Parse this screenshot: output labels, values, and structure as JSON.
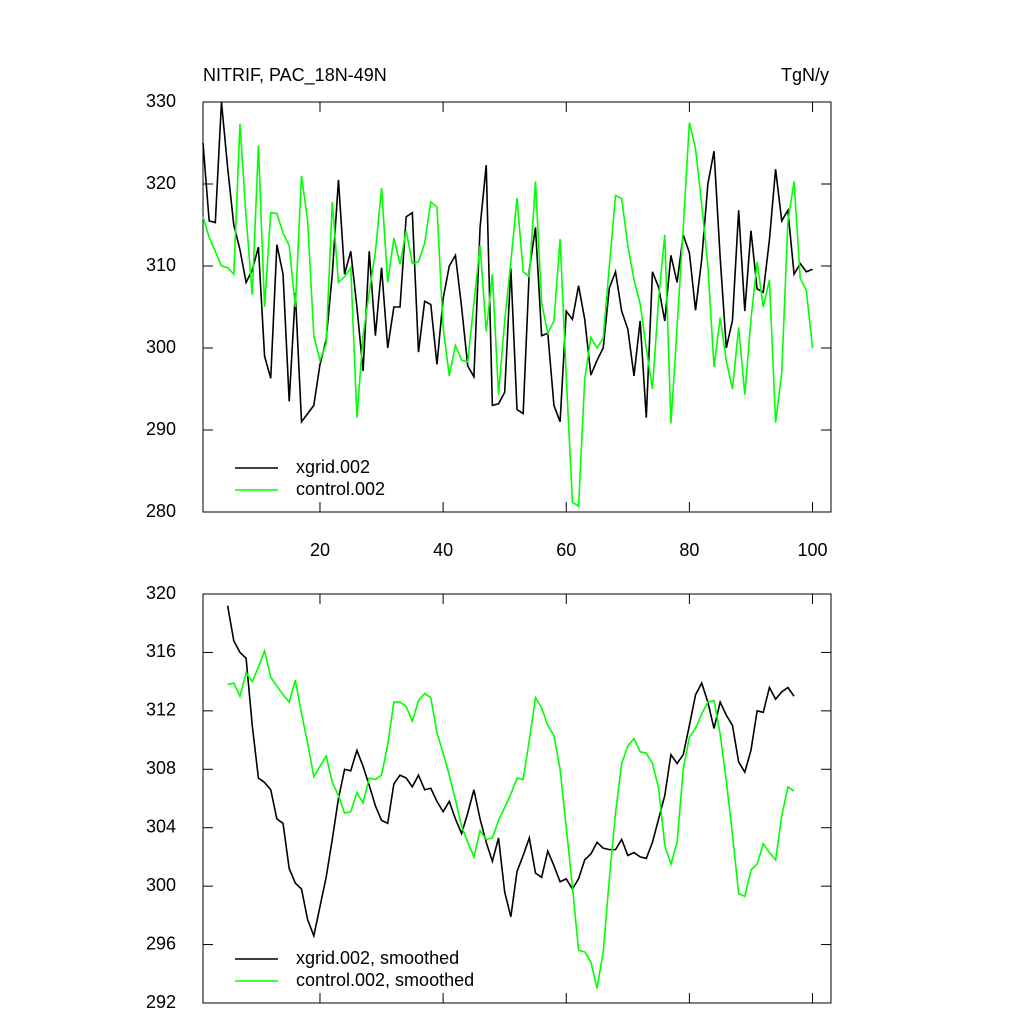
{
  "chart_data": [
    {
      "type": "line",
      "title": "NITRIF, PAC_18N-49N",
      "units_label": "TgN/y",
      "x": [
        1,
        2,
        3,
        4,
        5,
        6,
        7,
        8,
        9,
        10,
        11,
        12,
        13,
        14,
        15,
        16,
        17,
        18,
        19,
        20,
        21,
        22,
        23,
        24,
        25,
        26,
        27,
        28,
        29,
        30,
        31,
        32,
        33,
        34,
        35,
        36,
        37,
        38,
        39,
        40,
        41,
        42,
        43,
        44,
        45,
        46,
        47,
        48,
        49,
        50,
        51,
        52,
        53,
        54,
        55,
        56,
        57,
        58,
        59,
        60,
        61,
        62,
        63,
        64,
        65,
        66,
        67,
        68,
        69,
        70,
        71,
        72,
        73,
        74,
        75,
        76,
        77,
        78,
        79,
        80,
        81,
        82,
        83,
        84,
        85,
        86,
        87,
        88,
        89,
        90,
        91,
        92,
        93,
        94,
        95,
        96,
        97,
        98,
        99,
        100
      ],
      "xlim": [
        1,
        103
      ],
      "xticks": [
        20,
        40,
        60,
        80,
        100
      ],
      "xtick_labels": true,
      "ylim": [
        280,
        330
      ],
      "yticks": [
        280,
        290,
        300,
        310,
        320,
        330
      ],
      "series": [
        {
          "name": "xgrid.002",
          "color": "#000000",
          "values": [
            325,
            315.5,
            315.3,
            330,
            322,
            315,
            312,
            308,
            309.5,
            312.3,
            299,
            296.3,
            312.6,
            309,
            293.5,
            306.7,
            291,
            292,
            293,
            298,
            301,
            309,
            320.5,
            309,
            311.8,
            305,
            297.2,
            311.8,
            301.5,
            309.8,
            300,
            305,
            305,
            316,
            316.5,
            299.5,
            305.7,
            305.3,
            298,
            306,
            310,
            311.3,
            305,
            297.8,
            296.5,
            314.7,
            322.3,
            293,
            293.2,
            294.6,
            309.7,
            292.5,
            292,
            309.5,
            314.7,
            301.5,
            301.8,
            293,
            291,
            304.5,
            303.5,
            307.6,
            303.5,
            296.7,
            298.5,
            300,
            307.3,
            309.3,
            304.5,
            302.3,
            296.6,
            303.3,
            291.5,
            309.3,
            307.4,
            303.3,
            311.3,
            308,
            313.8,
            311.6,
            304.6,
            310.8,
            320,
            324,
            311,
            300,
            303.4,
            316.8,
            304.5,
            314.3,
            307.2,
            306.8,
            313.2,
            321.8,
            315.5,
            316.8,
            309,
            310.3,
            309.3,
            309.6
          ]
        },
        {
          "name": "control.002",
          "color": "#00ff00",
          "values": [
            316,
            313.5,
            311.8,
            310,
            309.8,
            309,
            327.3,
            316,
            306.5,
            324.7,
            305,
            316.5,
            316.4,
            314,
            312.5,
            305,
            321,
            315.5,
            301.5,
            298.5,
            300.5,
            317.8,
            308,
            308.7,
            309.8,
            291.5,
            301.5,
            306.8,
            311.7,
            319.5,
            308,
            313.4,
            310.2,
            314.3,
            310.3,
            310.5,
            312.8,
            317.8,
            317.2,
            302.5,
            296.6,
            300.3,
            298.5,
            298.3,
            305.5,
            312.5,
            302,
            309,
            294.3,
            303.3,
            310.5,
            318.3,
            309.3,
            308.7,
            320.3,
            305.5,
            301.8,
            303.3,
            313.3,
            296.5,
            281.2,
            280.7,
            296.2,
            301.3,
            300,
            301.2,
            310,
            318.6,
            318.2,
            312.5,
            308.3,
            305.4,
            300,
            295,
            306,
            313.8,
            290.8,
            302.5,
            314.7,
            327.5,
            324.3,
            317.5,
            310,
            297.7,
            303.7,
            298.4,
            295,
            302.5,
            294.3,
            303.5,
            310.5,
            305,
            308.3,
            290.9,
            297,
            315.4,
            320.3,
            308.5,
            307,
            300
          ]
        }
      ]
    },
    {
      "type": "line",
      "x": [
        5,
        6,
        7,
        8,
        9,
        10,
        11,
        12,
        13,
        14,
        15,
        16,
        17,
        18,
        19,
        20,
        21,
        22,
        23,
        24,
        25,
        26,
        27,
        28,
        29,
        30,
        31,
        32,
        33,
        34,
        35,
        36,
        37,
        38,
        39,
        40,
        41,
        42,
        43,
        44,
        45,
        46,
        47,
        48,
        49,
        50,
        51,
        52,
        53,
        54,
        55,
        56,
        57,
        58,
        59,
        60,
        61,
        62,
        63,
        64,
        65,
        66,
        67,
        68,
        69,
        70,
        71,
        72,
        73,
        74,
        75,
        76,
        77,
        78,
        79,
        80,
        81,
        82,
        83,
        84,
        85,
        86,
        87,
        88,
        89,
        90,
        91,
        92,
        93,
        94,
        95,
        96,
        97
      ],
      "xlim": [
        1,
        103
      ],
      "xticks": [
        20,
        40,
        60,
        80,
        100
      ],
      "xtick_labels": false,
      "ylim": [
        292,
        320
      ],
      "yticks": [
        292,
        296,
        300,
        304,
        308,
        312,
        316,
        320
      ],
      "series": [
        {
          "name": "xgrid.002, smoothed",
          "color": "#000000",
          "values": [
            319.2,
            316.8,
            316,
            315.6,
            311,
            307.4,
            307.1,
            306.6,
            304.6,
            304.3,
            301.2,
            300.2,
            299.8,
            297.7,
            296.6,
            298.6,
            300.6,
            303.2,
            306,
            308,
            307.9,
            309.3,
            308.2,
            306.9,
            305.5,
            304.5,
            304.3,
            307,
            307.6,
            307.4,
            306.8,
            307.6,
            306.6,
            306.7,
            305.8,
            305.1,
            305.8,
            304.6,
            303.6,
            305,
            306.6,
            304.6,
            303,
            301.7,
            303.3,
            299.6,
            297.9,
            301,
            302.1,
            303.3,
            300.9,
            300.6,
            302.4,
            301.4,
            300.3,
            300.5,
            299.8,
            300.5,
            301.8,
            302.2,
            303,
            302.6,
            302.5,
            302.5,
            303.2,
            302.1,
            302.3,
            302,
            301.9,
            303,
            304.6,
            306.2,
            309,
            308.4,
            309,
            311,
            313.1,
            313.9,
            312.6,
            310.8,
            312.6,
            311.7,
            311,
            308.5,
            307.8,
            309.3,
            312,
            311.9,
            313.6,
            312.8,
            313.3,
            313.6,
            313
          ]
        },
        {
          "name": "control.002, smoothed",
          "color": "#00ff00",
          "values": [
            313.8,
            313.9,
            313,
            314.6,
            314,
            315,
            316.1,
            314.3,
            313.7,
            313.1,
            312.6,
            314.1,
            311.8,
            309.8,
            307.5,
            308.2,
            308.9,
            307.1,
            306.2,
            305,
            305.1,
            306.4,
            305.7,
            307.4,
            307.3,
            307.6,
            309.7,
            312.6,
            312.6,
            312.3,
            311.3,
            312.7,
            313.2,
            312.9,
            310.5,
            309.1,
            307.6,
            305.9,
            304.1,
            303,
            302,
            303.8,
            303.2,
            303.3,
            304.5,
            305.4,
            306.3,
            307.4,
            307.3,
            310,
            312.9,
            312.2,
            311,
            310.3,
            308,
            304,
            300,
            295.6,
            295.5,
            294.8,
            293,
            295.5,
            300.5,
            305,
            308.4,
            309.6,
            310.1,
            309.2,
            309.1,
            308.4,
            306.7,
            302.8,
            301.5,
            303,
            308,
            310.2,
            310.8,
            311.8,
            312.6,
            312.7,
            310.4,
            307.2,
            303.5,
            299.5,
            299.3,
            301.1,
            301.5,
            302.9,
            302.3,
            301.8,
            304.8,
            306.8,
            306.5
          ]
        }
      ]
    }
  ]
}
